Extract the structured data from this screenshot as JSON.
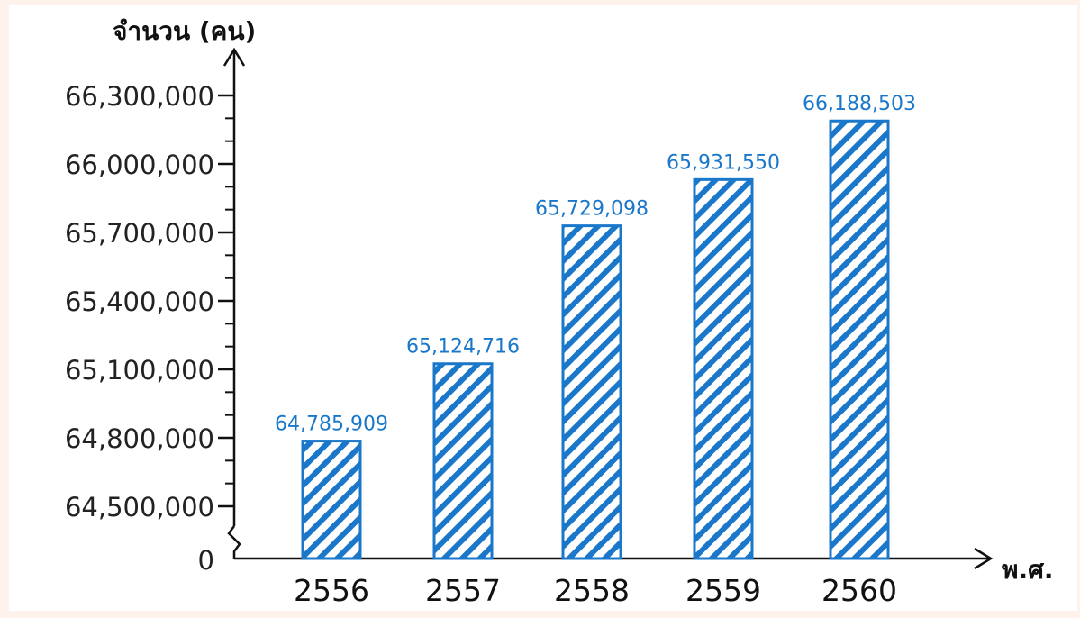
{
  "chart_data": {
    "type": "bar",
    "ylabel": "จำนวน (คน)",
    "xlabel": "พ.ศ.",
    "categories": [
      "2556",
      "2557",
      "2558",
      "2559",
      "2560"
    ],
    "values": [
      64785909,
      65124716,
      65729098,
      65931550,
      66188503
    ],
    "value_labels": [
      "64,785,909",
      "65,124,716",
      "65,729,098",
      "65,931,550",
      "66,188,503"
    ],
    "y_ticks": [
      64500000,
      64800000,
      65100000,
      65400000,
      65700000,
      66000000,
      66300000
    ],
    "y_tick_labels": [
      "64,500,000",
      "64,800,000",
      "65,100,000",
      "65,400,000",
      "65,700,000",
      "66,000,000",
      "66,300,000"
    ],
    "y_zero_label": "0",
    "axis_break": true,
    "ylim": [
      64500000,
      66300000
    ],
    "bar_style": "diagonal-hatch",
    "colors": {
      "bar": "#1a77c9",
      "value_text": "#1a77c9",
      "axis": "#111111"
    }
  }
}
